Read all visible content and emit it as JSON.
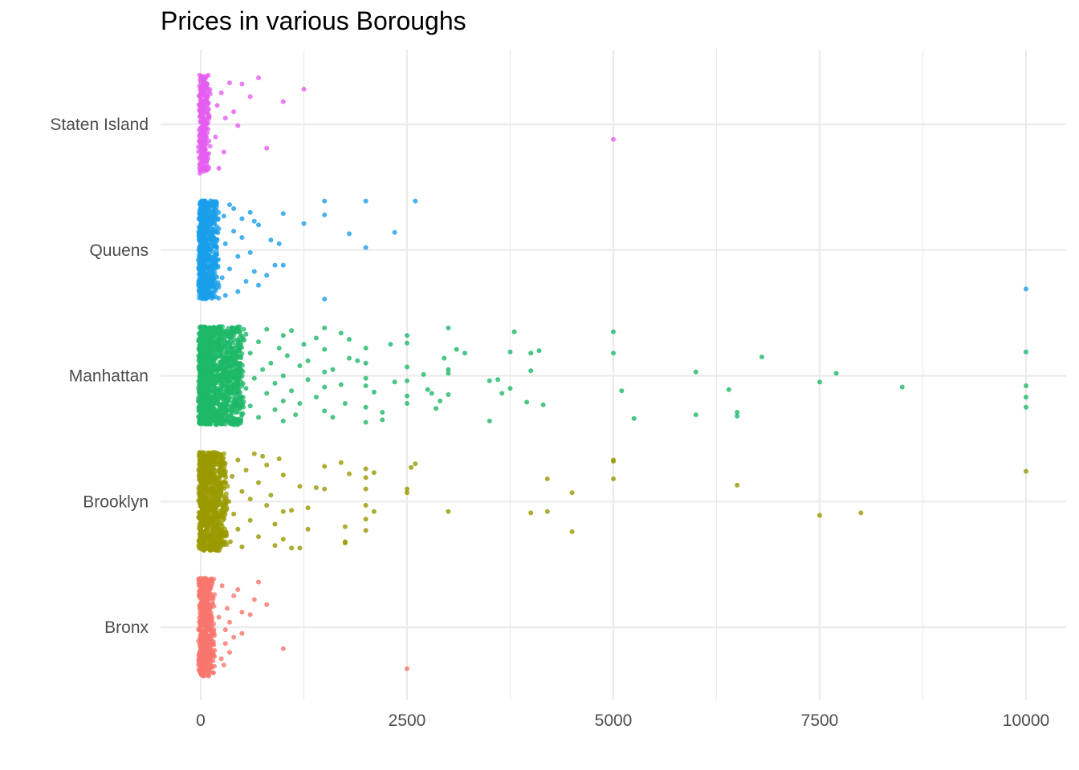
{
  "chart_data": {
    "type": "scatter",
    "title": "Prices in various Boroughs",
    "xlabel": "",
    "ylabel": "",
    "xlim": [
      -200,
      10500
    ],
    "x_ticks": [
      0,
      2500,
      5000,
      7500,
      10000
    ],
    "x_tick_labels": [
      "0",
      "2500",
      "5000",
      "7500",
      "10000"
    ],
    "categories": [
      "Bronx",
      "Brooklyn",
      "Manhattan",
      "Quuens",
      "Staten Island"
    ],
    "grid": true,
    "legend": "none",
    "jitter": 0.4,
    "series": [
      {
        "category": "Bronx",
        "color": "#F8766D",
        "dense_range": [
          0,
          150
        ],
        "dense_count": 500,
        "points": [
          {
            "x": 2500,
            "y": -0.33
          },
          {
            "x": 1000,
            "y": -0.17
          },
          {
            "x": 700,
            "y": 0.36
          },
          {
            "x": 650,
            "y": 0.22
          },
          {
            "x": 800,
            "y": 0.18
          },
          {
            "x": 500,
            "y": 0.12
          },
          {
            "x": 400,
            "y": 0.25
          },
          {
            "x": 350,
            "y": 0.04
          },
          {
            "x": 300,
            "y": -0.02
          },
          {
            "x": 450,
            "y": 0.3
          },
          {
            "x": 300,
            "y": -0.13
          },
          {
            "x": 600,
            "y": 0.1
          },
          {
            "x": 250,
            "y": -0.25
          },
          {
            "x": 400,
            "y": -0.08
          },
          {
            "x": 320,
            "y": 0.15
          },
          {
            "x": 280,
            "y": -0.3
          },
          {
            "x": 500,
            "y": -0.05
          },
          {
            "x": 350,
            "y": -0.2
          },
          {
            "x": 220,
            "y": 0.08
          },
          {
            "x": 260,
            "y": 0.33
          }
        ]
      },
      {
        "category": "Brooklyn",
        "color": "#999900",
        "dense_range": [
          0,
          300
        ],
        "dense_count": 900,
        "points": [
          {
            "x": 10000,
            "y": 0.24
          },
          {
            "x": 8000,
            "y": -0.09
          },
          {
            "x": 7500,
            "y": -0.11
          },
          {
            "x": 6500,
            "y": 0.13
          },
          {
            "x": 5000,
            "y": 0.33
          },
          {
            "x": 5000,
            "y": 0.32
          },
          {
            "x": 5000,
            "y": 0.18
          },
          {
            "x": 4500,
            "y": 0.07
          },
          {
            "x": 4500,
            "y": -0.24
          },
          {
            "x": 4200,
            "y": 0.18
          },
          {
            "x": 4200,
            "y": -0.08
          },
          {
            "x": 4000,
            "y": -0.09
          },
          {
            "x": 3000,
            "y": -0.08
          },
          {
            "x": 2600,
            "y": 0.3
          },
          {
            "x": 2550,
            "y": 0.27
          },
          {
            "x": 2500,
            "y": 0.1
          },
          {
            "x": 2500,
            "y": 0.07
          },
          {
            "x": 2100,
            "y": -0.08
          },
          {
            "x": 2100,
            "y": 0.23
          },
          {
            "x": 2000,
            "y": 0.26
          },
          {
            "x": 2000,
            "y": 0.19
          },
          {
            "x": 2000,
            "y": 0.1
          },
          {
            "x": 2000,
            "y": -0.14
          },
          {
            "x": 2000,
            "y": -0.23
          },
          {
            "x": 2000,
            "y": -0.03
          },
          {
            "x": 1800,
            "y": 0.22
          },
          {
            "x": 1750,
            "y": -0.32
          },
          {
            "x": 1750,
            "y": -0.2
          },
          {
            "x": 1750,
            "y": -0.33
          },
          {
            "x": 1700,
            "y": 0.31
          },
          {
            "x": 1500,
            "y": 0.1
          },
          {
            "x": 1500,
            "y": 0.28
          },
          {
            "x": 1400,
            "y": 0.11
          },
          {
            "x": 1300,
            "y": -0.05
          },
          {
            "x": 1300,
            "y": -0.22
          },
          {
            "x": 1200,
            "y": 0.12
          },
          {
            "x": 1200,
            "y": -0.37
          },
          {
            "x": 1100,
            "y": -0.07
          },
          {
            "x": 1100,
            "y": -0.37
          },
          {
            "x": 1000,
            "y": 0.21
          },
          {
            "x": 1000,
            "y": -0.3
          },
          {
            "x": 1000,
            "y": -0.08
          },
          {
            "x": 950,
            "y": 0.34
          },
          {
            "x": 900,
            "y": -0.18
          },
          {
            "x": 900,
            "y": -0.35
          },
          {
            "x": 850,
            "y": 0.05
          },
          {
            "x": 800,
            "y": 0.29
          },
          {
            "x": 800,
            "y": -0.03
          },
          {
            "x": 750,
            "y": 0.36
          },
          {
            "x": 700,
            "y": 0.15
          },
          {
            "x": 700,
            "y": -0.28
          },
          {
            "x": 650,
            "y": 0.38
          },
          {
            "x": 600,
            "y": 0.02
          },
          {
            "x": 600,
            "y": -0.15
          },
          {
            "x": 550,
            "y": 0.25
          },
          {
            "x": 500,
            "y": -0.36
          },
          {
            "x": 500,
            "y": 0.08
          },
          {
            "x": 450,
            "y": -0.22
          },
          {
            "x": 450,
            "y": 0.33
          },
          {
            "x": 400,
            "y": -0.1
          },
          {
            "x": 380,
            "y": 0.2
          },
          {
            "x": 360,
            "y": -0.32
          },
          {
            "x": 340,
            "y": 0.0
          }
        ]
      },
      {
        "category": "Manhattan",
        "color": "#1DB868",
        "dense_range": [
          0,
          500
        ],
        "dense_count": 1500,
        "points": [
          {
            "x": 10000,
            "y": 0.19
          },
          {
            "x": 10000,
            "y": -0.08
          },
          {
            "x": 10000,
            "y": -0.17
          },
          {
            "x": 10000,
            "y": -0.25
          },
          {
            "x": 8500,
            "y": -0.09
          },
          {
            "x": 7700,
            "y": 0.02
          },
          {
            "x": 7500,
            "y": -0.05
          },
          {
            "x": 6800,
            "y": 0.15
          },
          {
            "x": 6500,
            "y": -0.29
          },
          {
            "x": 6500,
            "y": -0.32
          },
          {
            "x": 6400,
            "y": -0.11
          },
          {
            "x": 6000,
            "y": 0.03
          },
          {
            "x": 6000,
            "y": -0.31
          },
          {
            "x": 5250,
            "y": -0.34
          },
          {
            "x": 5100,
            "y": -0.12
          },
          {
            "x": 5000,
            "y": 0.35
          },
          {
            "x": 5000,
            "y": 0.18
          },
          {
            "x": 4150,
            "y": -0.23
          },
          {
            "x": 4100,
            "y": 0.2
          },
          {
            "x": 4000,
            "y": 0.18
          },
          {
            "x": 4000,
            "y": 0.04
          },
          {
            "x": 3950,
            "y": -0.21
          },
          {
            "x": 3800,
            "y": 0.35
          },
          {
            "x": 3750,
            "y": 0.19
          },
          {
            "x": 3750,
            "y": -0.1
          },
          {
            "x": 3650,
            "y": -0.14
          },
          {
            "x": 3600,
            "y": -0.03
          },
          {
            "x": 3500,
            "y": -0.04
          },
          {
            "x": 3500,
            "y": -0.36
          },
          {
            "x": 3200,
            "y": 0.18
          },
          {
            "x": 3100,
            "y": 0.21
          },
          {
            "x": 3000,
            "y": 0.38
          },
          {
            "x": 3000,
            "y": 0.05
          },
          {
            "x": 3000,
            "y": 0.02
          },
          {
            "x": 3000,
            "y": -0.15
          },
          {
            "x": 2950,
            "y": 0.14
          },
          {
            "x": 2900,
            "y": -0.2
          },
          {
            "x": 2850,
            "y": -0.26
          },
          {
            "x": 2800,
            "y": -0.14
          },
          {
            "x": 2750,
            "y": -0.11
          },
          {
            "x": 2700,
            "y": 0.01
          },
          {
            "x": 2500,
            "y": 0.32
          },
          {
            "x": 2500,
            "y": 0.26
          },
          {
            "x": 2500,
            "y": 0.07
          },
          {
            "x": 2500,
            "y": -0.04
          },
          {
            "x": 2500,
            "y": -0.16
          },
          {
            "x": 2500,
            "y": -0.22
          },
          {
            "x": 2350,
            "y": -0.05
          },
          {
            "x": 2300,
            "y": 0.25
          },
          {
            "x": 2200,
            "y": -0.29
          },
          {
            "x": 2200,
            "y": -0.35
          },
          {
            "x": 2100,
            "y": -0.13
          },
          {
            "x": 2000,
            "y": 0.22
          },
          {
            "x": 2000,
            "y": 0.1
          },
          {
            "x": 2000,
            "y": -0.02
          },
          {
            "x": 2000,
            "y": -0.08
          },
          {
            "x": 2000,
            "y": -0.25
          },
          {
            "x": 2000,
            "y": -0.37
          },
          {
            "x": 1900,
            "y": 0.12
          },
          {
            "x": 1800,
            "y": 0.29
          },
          {
            "x": 1800,
            "y": 0.14
          },
          {
            "x": 1750,
            "y": -0.22
          },
          {
            "x": 1700,
            "y": 0.34
          },
          {
            "x": 1700,
            "y": -0.07
          },
          {
            "x": 1600,
            "y": 0.05
          },
          {
            "x": 1600,
            "y": -0.33
          },
          {
            "x": 1500,
            "y": 0.38
          },
          {
            "x": 1500,
            "y": 0.21
          },
          {
            "x": 1500,
            "y": 0.03
          },
          {
            "x": 1500,
            "y": -0.09
          },
          {
            "x": 1500,
            "y": -0.28
          },
          {
            "x": 1400,
            "y": 0.3
          },
          {
            "x": 1400,
            "y": -0.17
          },
          {
            "x": 1300,
            "y": 0.12
          },
          {
            "x": 1300,
            "y": -0.03
          },
          {
            "x": 1250,
            "y": 0.25
          },
          {
            "x": 1200,
            "y": -0.22
          },
          {
            "x": 1200,
            "y": 0.08
          },
          {
            "x": 1150,
            "y": -0.31
          },
          {
            "x": 1100,
            "y": 0.36
          },
          {
            "x": 1100,
            "y": -0.12
          },
          {
            "x": 1050,
            "y": 0.16
          },
          {
            "x": 1000,
            "y": 0.32
          },
          {
            "x": 1000,
            "y": 0.0
          },
          {
            "x": 1000,
            "y": -0.2
          },
          {
            "x": 1000,
            "y": -0.36
          },
          {
            "x": 950,
            "y": 0.22
          },
          {
            "x": 900,
            "y": -0.06
          },
          {
            "x": 900,
            "y": -0.27
          },
          {
            "x": 850,
            "y": 0.1
          },
          {
            "x": 800,
            "y": 0.37
          },
          {
            "x": 800,
            "y": -0.14
          },
          {
            "x": 750,
            "y": 0.05
          },
          {
            "x": 700,
            "y": -0.33
          },
          {
            "x": 700,
            "y": 0.27
          },
          {
            "x": 650,
            "y": -0.02
          },
          {
            "x": 600,
            "y": 0.18
          },
          {
            "x": 600,
            "y": -0.24
          },
          {
            "x": 550,
            "y": 0.33
          },
          {
            "x": 550,
            "y": -0.1
          }
        ]
      },
      {
        "category": "Quuens",
        "color": "#1A9FEA",
        "dense_range": [
          0,
          200
        ],
        "dense_count": 700,
        "points": [
          {
            "x": 10000,
            "y": -0.31
          },
          {
            "x": 2600,
            "y": 0.39
          },
          {
            "x": 2350,
            "y": 0.14
          },
          {
            "x": 2000,
            "y": 0.39
          },
          {
            "x": 2000,
            "y": 0.02
          },
          {
            "x": 1800,
            "y": 0.13
          },
          {
            "x": 1500,
            "y": 0.39
          },
          {
            "x": 1500,
            "y": 0.28
          },
          {
            "x": 1500,
            "y": -0.39
          },
          {
            "x": 1250,
            "y": 0.21
          },
          {
            "x": 1000,
            "y": 0.29
          },
          {
            "x": 1000,
            "y": -0.12
          },
          {
            "x": 950,
            "y": 0.05
          },
          {
            "x": 900,
            "y": -0.12
          },
          {
            "x": 850,
            "y": 0.08
          },
          {
            "x": 800,
            "y": -0.2
          },
          {
            "x": 700,
            "y": 0.2
          },
          {
            "x": 700,
            "y": -0.28
          },
          {
            "x": 650,
            "y": 0.23
          },
          {
            "x": 650,
            "y": -0.17
          },
          {
            "x": 600,
            "y": 0.3
          },
          {
            "x": 600,
            "y": -0.02
          },
          {
            "x": 550,
            "y": -0.25
          },
          {
            "x": 500,
            "y": 0.25
          },
          {
            "x": 500,
            "y": 0.1
          },
          {
            "x": 450,
            "y": -0.05
          },
          {
            "x": 450,
            "y": -0.33
          },
          {
            "x": 400,
            "y": 0.33
          },
          {
            "x": 400,
            "y": 0.15
          },
          {
            "x": 350,
            "y": -0.15
          },
          {
            "x": 350,
            "y": 0.36
          },
          {
            "x": 300,
            "y": -0.36
          },
          {
            "x": 300,
            "y": 0.05
          },
          {
            "x": 280,
            "y": 0.27
          },
          {
            "x": 260,
            "y": -0.22
          }
        ]
      },
      {
        "category": "Staten Island",
        "color": "#E45CF0",
        "dense_range": [
          0,
          100
        ],
        "dense_count": 250,
        "points": [
          {
            "x": 5000,
            "y": -0.12
          },
          {
            "x": 1250,
            "y": 0.28
          },
          {
            "x": 1000,
            "y": 0.18
          },
          {
            "x": 800,
            "y": -0.19
          },
          {
            "x": 700,
            "y": 0.37
          },
          {
            "x": 600,
            "y": 0.22
          },
          {
            "x": 500,
            "y": 0.32
          },
          {
            "x": 450,
            "y": -0.01
          },
          {
            "x": 400,
            "y": 0.1
          },
          {
            "x": 350,
            "y": 0.33
          },
          {
            "x": 300,
            "y": 0.05
          },
          {
            "x": 280,
            "y": -0.22
          },
          {
            "x": 250,
            "y": 0.25
          },
          {
            "x": 220,
            "y": -0.35
          },
          {
            "x": 200,
            "y": 0.15
          },
          {
            "x": 180,
            "y": -0.1
          }
        ]
      }
    ]
  }
}
